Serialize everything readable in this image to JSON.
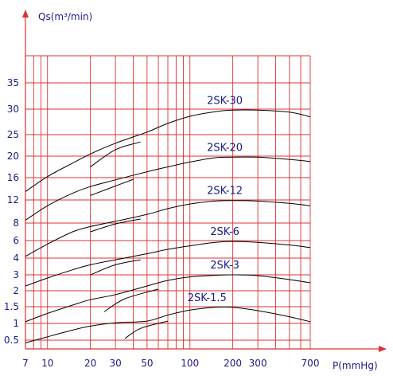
{
  "chart_data": {
    "type": "line",
    "x_scale": "log",
    "y_scale": "nonuniform",
    "xlabel": "P(mmHg)",
    "ylabel": "Qs(m³/min)",
    "x_ticks": [
      "7",
      "10",
      "20",
      "30",
      "50",
      "100",
      "200",
      "300",
      "700"
    ],
    "y_ticks": [
      "0.5",
      "1",
      "1.5",
      "2",
      "3",
      "4",
      "6",
      "8",
      "12",
      "16",
      "20",
      "25",
      "30",
      "35"
    ],
    "xlim": [
      7,
      700
    ],
    "grid": true,
    "colors": {
      "axis": "#e03030",
      "grid": "#e03030",
      "curve": "#000000",
      "text": "#1a1a8c"
    },
    "series": [
      {
        "name": "2SK-30",
        "x": [
          7,
          10,
          15,
          20,
          30,
          50,
          70,
          100,
          150,
          200,
          300,
          500,
          700
        ],
        "y": [
          13.5,
          16.2,
          18.7,
          20.5,
          23,
          25.5,
          27.2,
          28.6,
          29.5,
          29.8,
          29.8,
          29.4,
          28.5
        ]
      },
      {
        "name": "2SK-20",
        "x": [
          7,
          10,
          15,
          20,
          30,
          50,
          70,
          100,
          150,
          200,
          300,
          500,
          700
        ],
        "y": [
          8.5,
          11,
          13.2,
          14.4,
          15.6,
          17.1,
          18,
          18.9,
          19.7,
          19.8,
          19.8,
          19.4,
          19
        ]
      },
      {
        "name": "2SK-12",
        "x": [
          7,
          10,
          15,
          20,
          30,
          50,
          70,
          100,
          150,
          200,
          300,
          500,
          700
        ],
        "y": [
          4.2,
          5.6,
          7,
          7.6,
          8.3,
          9.5,
          10.5,
          11.3,
          11.8,
          11.9,
          11.8,
          11.4,
          11
        ]
      },
      {
        "name": "2SK-6",
        "x": [
          7,
          10,
          15,
          20,
          30,
          50,
          70,
          100,
          150,
          200,
          300,
          500,
          700
        ],
        "y": [
          2.3,
          2.8,
          3.3,
          3.6,
          3.9,
          4.5,
          5,
          5.4,
          5.8,
          5.9,
          5.8,
          5.5,
          5.2
        ]
      },
      {
        "name": "2SK-3",
        "x": [
          7,
          10,
          15,
          20,
          30,
          50,
          70,
          100,
          150,
          200,
          300,
          500,
          700
        ],
        "y": [
          1.05,
          1.3,
          1.55,
          1.72,
          1.88,
          2.3,
          2.65,
          2.87,
          2.97,
          3,
          2.95,
          2.7,
          2.5
        ]
      },
      {
        "name": "2SK-1.5",
        "x": [
          7,
          10,
          15,
          20,
          30,
          50,
          70,
          100,
          150,
          200,
          300,
          500,
          700
        ],
        "y": [
          0.42,
          0.6,
          0.8,
          0.92,
          1.02,
          1.07,
          1.25,
          1.4,
          1.48,
          1.48,
          1.38,
          1.2,
          1.05
        ]
      }
    ],
    "overlap_segments": [
      {
        "x": [
          20,
          30,
          45
        ],
        "y": [
          18,
          21.5,
          23.3
        ]
      },
      {
        "x": [
          20,
          30,
          40
        ],
        "y": [
          12.8,
          14.5,
          15.7
        ]
      },
      {
        "x": [
          20,
          30,
          45
        ],
        "y": [
          7,
          7.9,
          8.7
        ]
      },
      {
        "x": [
          20,
          30,
          45
        ],
        "y": [
          3,
          3.6,
          3.9
        ]
      },
      {
        "x": [
          25,
          35,
          60
        ],
        "y": [
          1.35,
          1.75,
          2.1
        ]
      },
      {
        "x": [
          35,
          45,
          70
        ],
        "y": [
          0.55,
          0.85,
          1.07
        ]
      }
    ]
  }
}
